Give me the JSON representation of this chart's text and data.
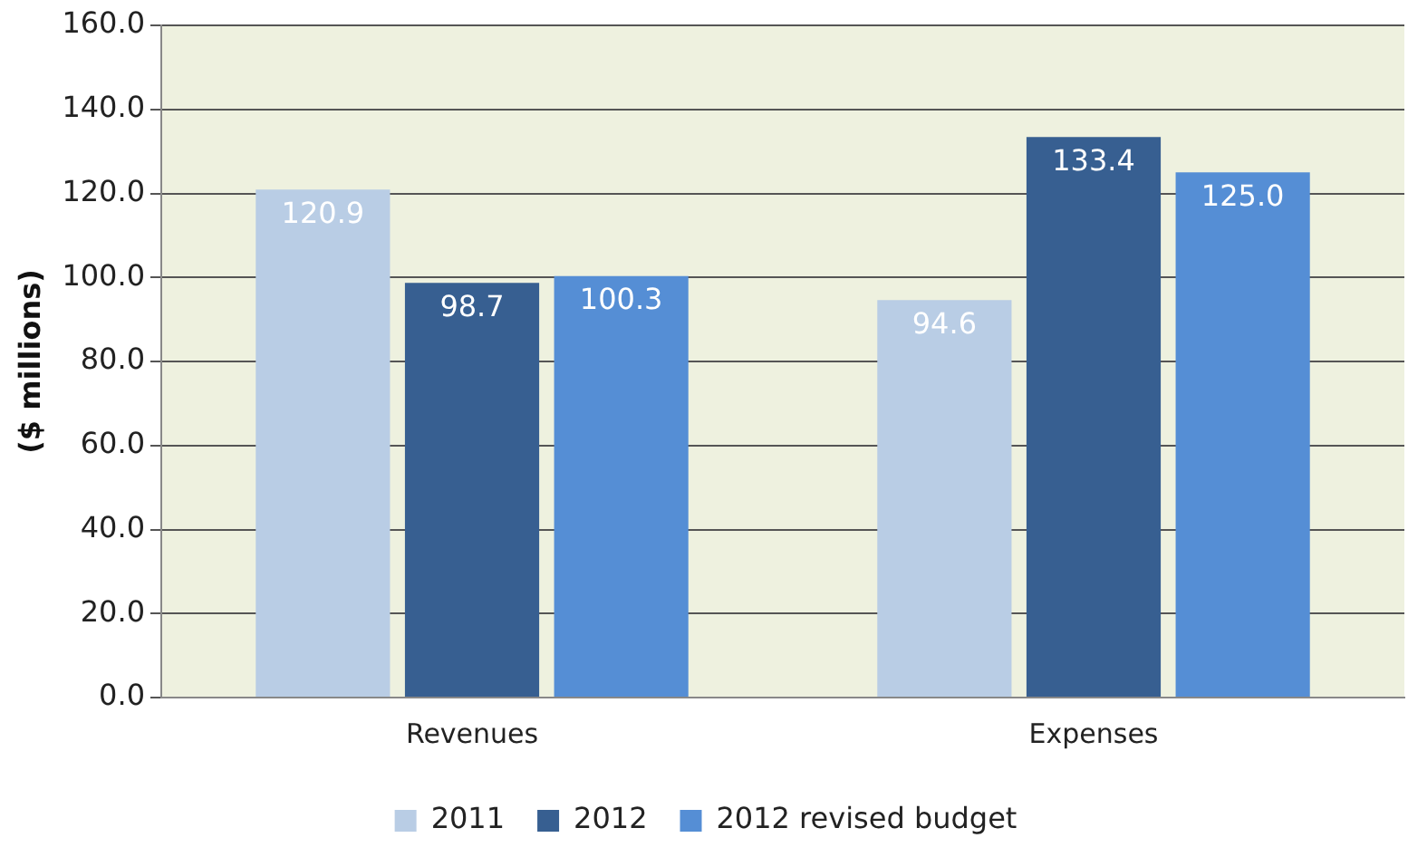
{
  "chart_data": {
    "type": "bar",
    "ylabel": "($ millions)",
    "categories": [
      "Revenues",
      "Expenses"
    ],
    "series": [
      {
        "name": "2011",
        "color": "#b9cde5",
        "values": [
          120.9,
          94.6
        ],
        "value_labels": [
          "120.9",
          "94.6"
        ]
      },
      {
        "name": "2012",
        "color": "#375f91",
        "values": [
          98.7,
          133.4
        ],
        "value_labels": [
          "98.7",
          "133.4"
        ]
      },
      {
        "name": "2012 revised budget",
        "color": "#558ed5",
        "values": [
          100.3,
          125.0
        ],
        "value_labels": [
          "100.3",
          "125.0"
        ]
      }
    ],
    "ylim": [
      0,
      160
    ],
    "yticks": [
      {
        "value": 0,
        "label": "0.0"
      },
      {
        "value": 20,
        "label": "20.0"
      },
      {
        "value": 40,
        "label": "40.0"
      },
      {
        "value": 60,
        "label": "60.0"
      },
      {
        "value": 80,
        "label": "80.0"
      },
      {
        "value": 100,
        "label": "100.0"
      },
      {
        "value": 120,
        "label": "120.0"
      },
      {
        "value": 140,
        "label": "140.0"
      },
      {
        "value": 160,
        "label": "160.0"
      }
    ],
    "grid": "y",
    "legend": "bottom"
  }
}
